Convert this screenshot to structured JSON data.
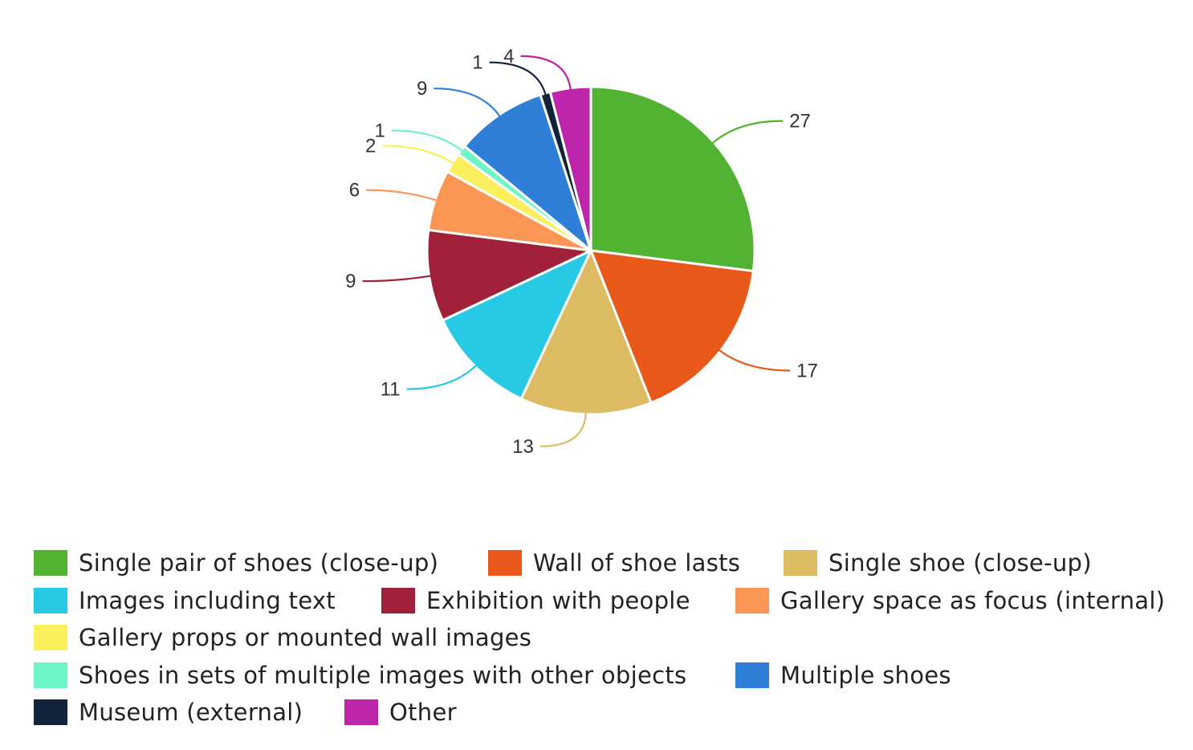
{
  "chart_data": {
    "type": "pie",
    "title": "",
    "slices": [
      {
        "label": "Single pair of shoes (close-up)",
        "value": 27,
        "color": "#52b332"
      },
      {
        "label": "Wall of shoe lasts",
        "value": 17,
        "color": "#e8591a"
      },
      {
        "label": "Single shoe (close-up)",
        "value": 13,
        "color": "#dcbb62"
      },
      {
        "label": "Images including text",
        "value": 11,
        "color": "#27c9e4"
      },
      {
        "label": "Exhibition with people",
        "value": 9,
        "color": "#a2213a"
      },
      {
        "label": "Gallery space as focus (internal)",
        "value": 6,
        "color": "#fb9655"
      },
      {
        "label": "Gallery props or mounted wall images",
        "value": 2,
        "color": "#fbf05c"
      },
      {
        "label": "Shoes in sets of multiple images with other objects",
        "value": 1,
        "color": "#6ef5c9"
      },
      {
        "label": "Multiple shoes",
        "value": 9,
        "color": "#2f7fd8"
      },
      {
        "label": "Museum (external)",
        "value": 1,
        "color": "#13233b"
      },
      {
        "label": "Other",
        "value": 4,
        "color": "#bd25aa"
      }
    ],
    "legend_position": "bottom"
  }
}
